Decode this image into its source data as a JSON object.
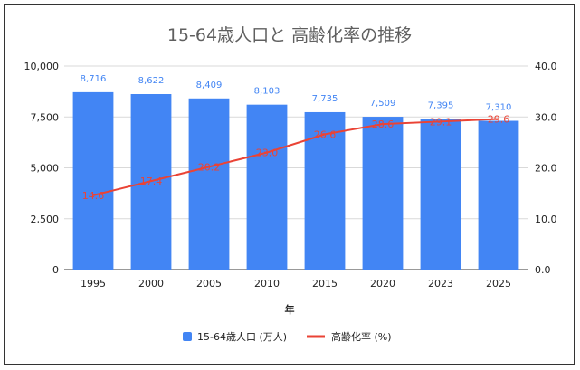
{
  "chart_data": {
    "type": "bar",
    "title": "15-64歳人口と 高齢化率の推移",
    "xlabel": "年",
    "categories": [
      "1995",
      "2000",
      "2005",
      "2010",
      "2015",
      "2020",
      "2023",
      "2025"
    ],
    "series": [
      {
        "name": "15-64歳人口 (万人)",
        "type": "bar",
        "axis": "left",
        "values": [
          8716,
          8622,
          8409,
          8103,
          7735,
          7509,
          7395,
          7310
        ],
        "labels": [
          "8,716",
          "8,622",
          "8,409",
          "8,103",
          "7,735",
          "7,509",
          "7,395",
          "7,310"
        ],
        "color": "#4285f4"
      },
      {
        "name": "高齢化率 (%)",
        "type": "line",
        "axis": "right",
        "values": [
          14.6,
          17.4,
          20.2,
          23.0,
          26.6,
          28.6,
          29.1,
          29.6
        ],
        "labels": [
          "14.6",
          "17.4",
          "20.2",
          "23.0",
          "26.6",
          "28.6",
          "29.1",
          "29.6"
        ],
        "color": "#ea4335"
      }
    ],
    "y_left": {
      "range": [
        0,
        10000
      ],
      "ticks": [
        "0",
        "2,500",
        "5,000",
        "7,500",
        "10,000"
      ]
    },
    "y_right": {
      "range": [
        0,
        40
      ],
      "ticks": [
        "0.0",
        "10.0",
        "20.0",
        "30.0",
        "40.0"
      ]
    },
    "grid": true,
    "legend_position": "bottom"
  }
}
